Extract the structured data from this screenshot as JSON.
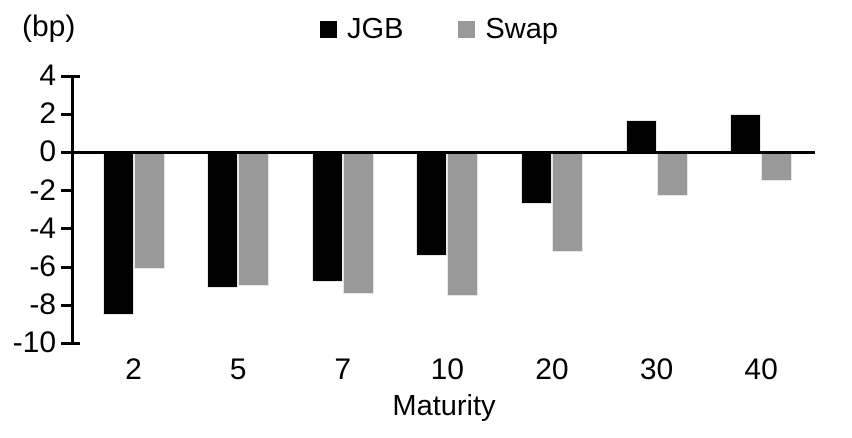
{
  "chart": {
    "unit_label": "(bp)",
    "xlabel": "Maturity"
  },
  "chart_data": {
    "type": "bar",
    "title": "",
    "xlabel": "Maturity",
    "ylabel": "(bp)",
    "categories": [
      "2",
      "5",
      "7",
      "10",
      "20",
      "30",
      "40"
    ],
    "series": [
      {
        "name": "JGB",
        "color": "#000000",
        "values": [
          -8.5,
          -7.1,
          -6.8,
          -5.4,
          -2.7,
          1.7,
          2.0
        ]
      },
      {
        "name": "Swap",
        "color": "#999999",
        "values": [
          -6.1,
          -7.0,
          -7.4,
          -7.5,
          -5.2,
          -2.3,
          -1.5
        ]
      }
    ],
    "ylim": [
      -10,
      4
    ],
    "yticks": [
      4,
      2,
      0,
      -2,
      -4,
      -6,
      -8,
      -10
    ],
    "grid": false,
    "legend_position": "top-center"
  }
}
